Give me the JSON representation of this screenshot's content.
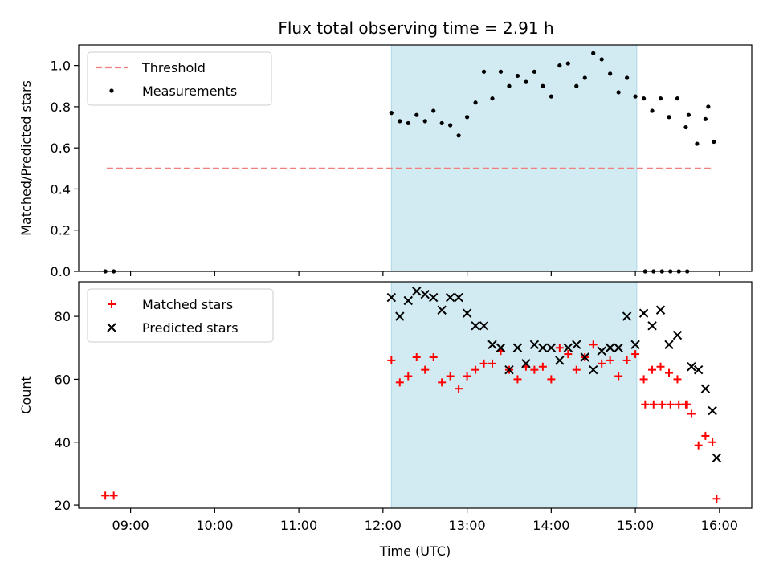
{
  "title": "Flux total observing time = 2.91 h",
  "colors": {
    "threshold": "#f08080",
    "span": "#add8e6",
    "measurement": "#000000",
    "matched": "#ff0000",
    "predicted": "#000000"
  },
  "chart_data": [
    {
      "type": "scatter",
      "ylabel": "Matched/Predicted stars",
      "ylim": [
        0,
        1.1
      ],
      "yticks": [
        0.0,
        0.2,
        0.4,
        0.6,
        0.8,
        1.0
      ],
      "ytick_labels": [
        "0.0",
        "0.2",
        "0.4",
        "0.6",
        "0.8",
        "1.0"
      ],
      "grid": false,
      "legend": "upper-left",
      "legend_entries": [
        "Threshold",
        "Measurements"
      ],
      "observing_span": {
        "start": "12:06",
        "end": "15:01"
      },
      "threshold": {
        "name": "Threshold",
        "y": 0.5,
        "x_start": "08:43",
        "x_end": "15:54"
      },
      "series": [
        {
          "name": "Measurements",
          "points": [
            [
              "08:42",
              0.0
            ],
            [
              "08:48",
              0.0
            ],
            [
              "12:06",
              0.77
            ],
            [
              "12:12",
              0.73
            ],
            [
              "12:18",
              0.72
            ],
            [
              "12:24",
              0.76
            ],
            [
              "12:30",
              0.73
            ],
            [
              "12:36",
              0.78
            ],
            [
              "12:42",
              0.72
            ],
            [
              "12:48",
              0.71
            ],
            [
              "12:54",
              0.66
            ],
            [
              "13:00",
              0.75
            ],
            [
              "13:06",
              0.82
            ],
            [
              "13:12",
              0.97
            ],
            [
              "13:18",
              0.84
            ],
            [
              "13:24",
              0.97
            ],
            [
              "13:30",
              0.9
            ],
            [
              "13:36",
              0.95
            ],
            [
              "13:42",
              0.92
            ],
            [
              "13:48",
              0.97
            ],
            [
              "13:54",
              0.9
            ],
            [
              "14:00",
              0.85
            ],
            [
              "14:06",
              1.0
            ],
            [
              "14:12",
              1.01
            ],
            [
              "14:18",
              0.9
            ],
            [
              "14:24",
              0.94
            ],
            [
              "14:30",
              1.06
            ],
            [
              "14:36",
              1.03
            ],
            [
              "14:42",
              0.96
            ],
            [
              "14:48",
              0.87
            ],
            [
              "14:54",
              0.94
            ],
            [
              "15:00",
              0.85
            ],
            [
              "15:06",
              0.84
            ],
            [
              "15:12",
              0.78
            ],
            [
              "15:18",
              0.84
            ],
            [
              "15:24",
              0.75
            ],
            [
              "15:30",
              0.84
            ],
            [
              "15:36",
              0.7
            ],
            [
              "15:07",
              0.0
            ],
            [
              "15:13",
              0.0
            ],
            [
              "15:19",
              0.0
            ],
            [
              "15:25",
              0.0
            ],
            [
              "15:31",
              0.0
            ],
            [
              "15:37",
              0.0
            ],
            [
              "15:38",
              0.76
            ],
            [
              "15:44",
              0.62
            ],
            [
              "15:50",
              0.74
            ],
            [
              "15:52",
              0.8
            ],
            [
              "15:56",
              0.63
            ]
          ]
        }
      ]
    },
    {
      "type": "scatter",
      "xlabel": "Time (UTC)",
      "ylabel": "Count",
      "ylim": [
        19,
        91
      ],
      "yticks": [
        20,
        40,
        60,
        80
      ],
      "ytick_labels": [
        "20",
        "40",
        "60",
        "80"
      ],
      "xlim": [
        "08:23",
        "16:23"
      ],
      "xticks": [
        "09:00",
        "10:00",
        "11:00",
        "12:00",
        "13:00",
        "14:00",
        "15:00",
        "16:00"
      ],
      "grid": false,
      "legend": "upper-left",
      "legend_entries": [
        "Matched stars",
        "Predicted stars"
      ],
      "observing_span": {
        "start": "12:06",
        "end": "15:01"
      },
      "series": [
        {
          "name": "Matched stars",
          "marker": "plus",
          "points": [
            [
              "08:42",
              23
            ],
            [
              "08:48",
              23
            ],
            [
              "12:06",
              66
            ],
            [
              "12:12",
              59
            ],
            [
              "12:18",
              61
            ],
            [
              "12:24",
              67
            ],
            [
              "12:30",
              63
            ],
            [
              "12:36",
              67
            ],
            [
              "12:42",
              59
            ],
            [
              "12:48",
              61
            ],
            [
              "12:54",
              57
            ],
            [
              "13:00",
              61
            ],
            [
              "13:06",
              63
            ],
            [
              "13:12",
              65
            ],
            [
              "13:18",
              65
            ],
            [
              "13:24",
              69
            ],
            [
              "13:30",
              63
            ],
            [
              "13:36",
              60
            ],
            [
              "13:42",
              64
            ],
            [
              "13:48",
              63
            ],
            [
              "13:54",
              64
            ],
            [
              "14:00",
              60
            ],
            [
              "14:06",
              70
            ],
            [
              "14:12",
              68
            ],
            [
              "14:18",
              63
            ],
            [
              "14:24",
              67
            ],
            [
              "14:30",
              71
            ],
            [
              "14:36",
              65
            ],
            [
              "14:42",
              66
            ],
            [
              "14:48",
              61
            ],
            [
              "14:54",
              66
            ],
            [
              "15:00",
              68
            ],
            [
              "15:06",
              60
            ],
            [
              "15:12",
              63
            ],
            [
              "15:18",
              64
            ],
            [
              "15:24",
              62
            ],
            [
              "15:30",
              60
            ],
            [
              "15:36",
              52
            ],
            [
              "15:07",
              52
            ],
            [
              "15:13",
              52
            ],
            [
              "15:19",
              52
            ],
            [
              "15:25",
              52
            ],
            [
              "15:31",
              52
            ],
            [
              "15:37",
              52
            ],
            [
              "15:40",
              49
            ],
            [
              "15:45",
              39
            ],
            [
              "15:50",
              42
            ],
            [
              "15:55",
              40
            ],
            [
              "15:58",
              22
            ]
          ]
        },
        {
          "name": "Predicted stars",
          "marker": "x",
          "points": [
            [
              "12:06",
              86
            ],
            [
              "12:12",
              80
            ],
            [
              "12:18",
              85
            ],
            [
              "12:24",
              88
            ],
            [
              "12:30",
              87
            ],
            [
              "12:36",
              86
            ],
            [
              "12:42",
              82
            ],
            [
              "12:48",
              86
            ],
            [
              "12:54",
              86
            ],
            [
              "13:00",
              81
            ],
            [
              "13:06",
              77
            ],
            [
              "13:12",
              77
            ],
            [
              "13:18",
              71
            ],
            [
              "13:24",
              70
            ],
            [
              "13:30",
              63
            ],
            [
              "13:36",
              70
            ],
            [
              "13:42",
              65
            ],
            [
              "13:48",
              71
            ],
            [
              "13:54",
              70
            ],
            [
              "14:00",
              70
            ],
            [
              "14:06",
              66
            ],
            [
              "14:12",
              70
            ],
            [
              "14:18",
              71
            ],
            [
              "14:24",
              67
            ],
            [
              "14:30",
              63
            ],
            [
              "14:36",
              69
            ],
            [
              "14:42",
              70
            ],
            [
              "14:48",
              70
            ],
            [
              "14:54",
              80
            ],
            [
              "15:00",
              71
            ],
            [
              "15:06",
              81
            ],
            [
              "15:12",
              77
            ],
            [
              "15:18",
              82
            ],
            [
              "15:24",
              71
            ],
            [
              "15:30",
              74
            ],
            [
              "15:40",
              64
            ],
            [
              "15:45",
              63
            ],
            [
              "15:50",
              57
            ],
            [
              "15:55",
              50
            ],
            [
              "15:58",
              35
            ]
          ]
        }
      ]
    }
  ]
}
